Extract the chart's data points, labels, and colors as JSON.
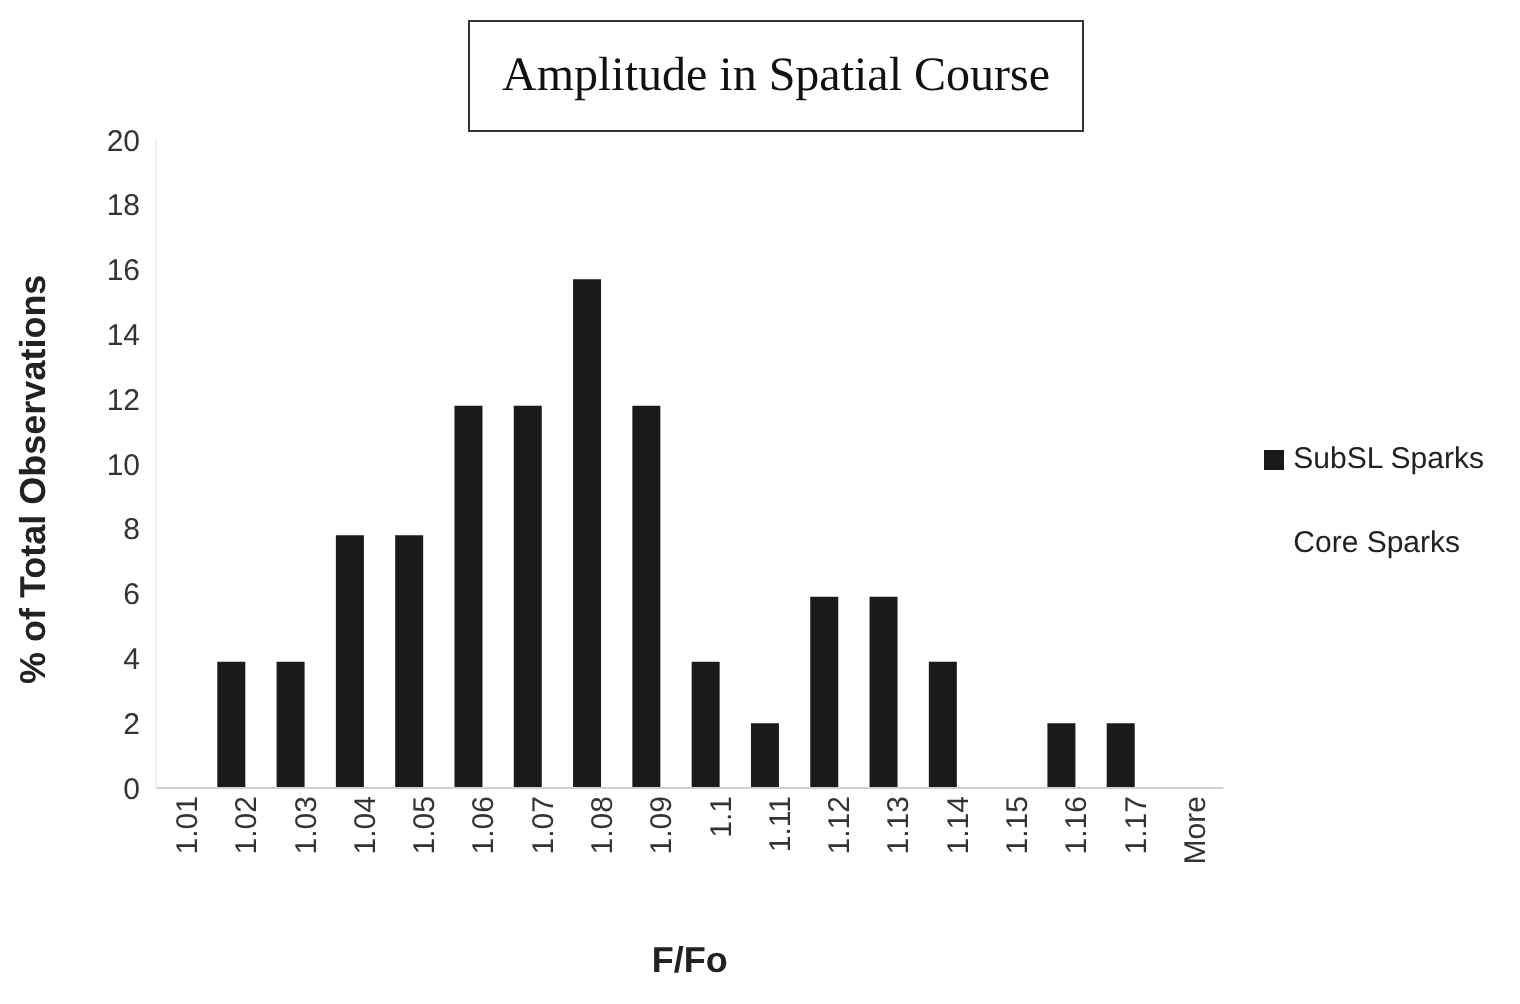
{
  "chart_data": {
    "type": "bar",
    "title": "Amplitude in Spatial Course",
    "xlabel": "F/Fo",
    "ylabel": "% of Total Observations",
    "categories": [
      "1.01",
      "1.02",
      "1.03",
      "1.04",
      "1.05",
      "1.06",
      "1.07",
      "1.08",
      "1.09",
      "1.1",
      "1.11",
      "1.12",
      "1.13",
      "1.14",
      "1.15",
      "1.16",
      "1.17",
      "More"
    ],
    "series": [
      {
        "name": "SubSL Sparks",
        "color": "#1a1a1a",
        "values": [
          0,
          3.9,
          3.9,
          7.8,
          7.8,
          11.8,
          11.8,
          15.7,
          11.8,
          3.9,
          2.0,
          5.9,
          5.9,
          3.9,
          0,
          2.0,
          2.0,
          0
        ]
      },
      {
        "name": "Core Sparks",
        "values": [
          null,
          null,
          null,
          null,
          null,
          null,
          null,
          null,
          null,
          null,
          null,
          null,
          null,
          null,
          null,
          null,
          null,
          null
        ]
      }
    ],
    "ylim": [
      0,
      20
    ],
    "yticks": [
      0,
      2,
      4,
      6,
      8,
      10,
      12,
      14,
      16,
      18,
      20
    ],
    "grid": false,
    "legend": "right"
  }
}
